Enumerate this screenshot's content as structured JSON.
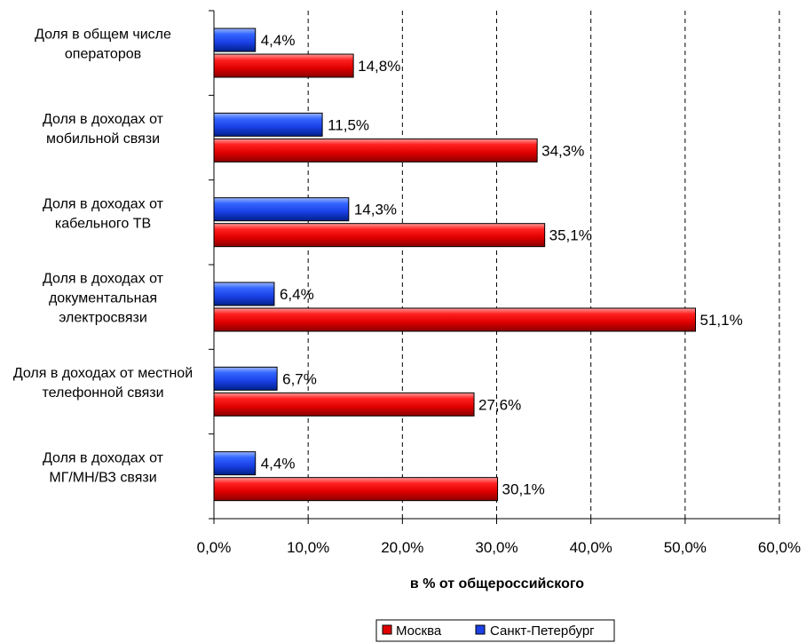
{
  "chart_data": {
    "type": "bar",
    "orientation": "horizontal",
    "categories": [
      [
        "Доля в общем числе",
        "операторов"
      ],
      [
        "Доля в доходах  от",
        "мобильной связи"
      ],
      [
        "Доля в доходах от",
        "кабельного ТВ"
      ],
      [
        "Доля в доходах от",
        "документальная",
        "электросвязи"
      ],
      [
        "Доля в доходах от местной",
        "телефонной связи"
      ],
      [
        "Доля в доходах от",
        "МГ/МН/ВЗ связи"
      ]
    ],
    "series": [
      {
        "name": "Москва",
        "color": "#ff0000",
        "values": [
          14.8,
          34.3,
          35.1,
          51.1,
          27.6,
          30.1
        ],
        "labels": [
          "14,8%",
          "34,3%",
          "35,1%",
          "51,1%",
          "27,6%",
          "30,1%"
        ]
      },
      {
        "name": "Санкт-Петербург",
        "color": "#0033ff",
        "values": [
          4.4,
          11.5,
          14.3,
          6.4,
          6.7,
          4.4
        ],
        "labels": [
          "4,4%",
          "11,5%",
          "14,3%",
          "6,4%",
          "6,7%",
          "4,4%"
        ]
      }
    ],
    "xlim": [
      0,
      60
    ],
    "xticks": [
      0,
      10,
      20,
      30,
      40,
      50,
      60
    ],
    "xtick_labels": [
      "0,0%",
      "10,0%",
      "20,0%",
      "30,0%",
      "40,0%",
      "50,0%",
      "60,0%"
    ],
    "xlabel": "в % от общероссийского",
    "grid": "vertical-dashed",
    "legend_position": "bottom"
  }
}
